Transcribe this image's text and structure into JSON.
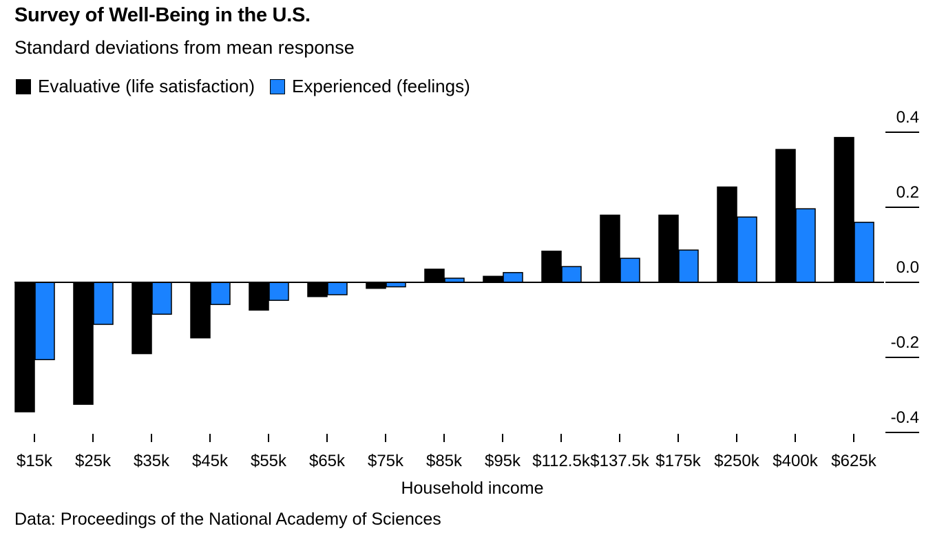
{
  "chart_data": {
    "type": "bar",
    "title": "Survey of Well-Being in the U.S.",
    "subtitle": "Standard deviations from mean response",
    "xlabel": "Household income",
    "ylabel": "",
    "ylim": [
      -0.4,
      0.4
    ],
    "yticks": [
      0.4,
      0.2,
      0.0,
      -0.2,
      -0.4
    ],
    "ytick_labels": [
      "0.4",
      "0.2",
      "0.0",
      "-0.2",
      "-0.4"
    ],
    "grid": false,
    "legend_position": "top-left",
    "categories": [
      "$15k",
      "$25k",
      "$35k",
      "$45k",
      "$55k",
      "$65k",
      "$75k",
      "$85k",
      "$95k",
      "$112.5k",
      "$137.5k",
      "$175k",
      "$250k",
      "$400k",
      "$625k"
    ],
    "series": [
      {
        "name": "Evaluative (life satisfaction)",
        "color": "#000000",
        "values": [
          -0.345,
          -0.325,
          -0.19,
          -0.148,
          -0.074,
          -0.038,
          -0.016,
          0.035,
          0.016,
          0.083,
          0.179,
          0.179,
          0.254,
          0.354,
          0.386
        ]
      },
      {
        "name": "Experienced (feelings)",
        "color": "#1a82ff",
        "values": [
          -0.206,
          -0.112,
          -0.085,
          -0.059,
          -0.048,
          -0.033,
          -0.012,
          0.011,
          0.026,
          0.042,
          0.064,
          0.086,
          0.174,
          0.196,
          0.16
        ]
      }
    ]
  },
  "source": "Data: Proceedings of the National Academy of Sciences"
}
